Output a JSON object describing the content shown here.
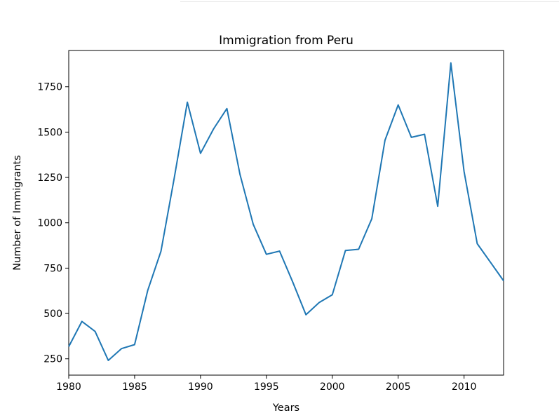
{
  "chart_data": {
    "type": "line",
    "title": "Immigration from Peru",
    "xlabel": "Years",
    "ylabel": "Number of Immigrants",
    "xlim": [
      1980,
      2013
    ],
    "ylim": [
      160,
      1950
    ],
    "xticks": [
      1980,
      1985,
      1990,
      1995,
      2000,
      2005,
      2010
    ],
    "yticks": [
      250,
      500,
      750,
      1000,
      1250,
      1500,
      1750
    ],
    "grid": false,
    "series": [
      {
        "color": "#1f77b4",
        "x": [
          1980,
          1981,
          1982,
          1983,
          1984,
          1985,
          1986,
          1987,
          1988,
          1989,
          1990,
          1991,
          1992,
          1993,
          1994,
          1995,
          1996,
          1997,
          1998,
          1999,
          2000,
          2001,
          2002,
          2003,
          2004,
          2005,
          2006,
          2007,
          2008,
          2009,
          2010,
          2011,
          2012,
          2013
        ],
        "y": [
          317,
          456,
          401,
          241,
          306,
          328,
          628,
          843,
          1244,
          1665,
          1383,
          1519,
          1630,
          1266,
          992,
          826,
          844,
          673,
          493,
          560,
          603,
          847,
          854,
          1022,
          1455,
          1650,
          1471,
          1488,
          1091,
          1881,
          1284,
          885,
          783,
          680
        ]
      }
    ]
  }
}
